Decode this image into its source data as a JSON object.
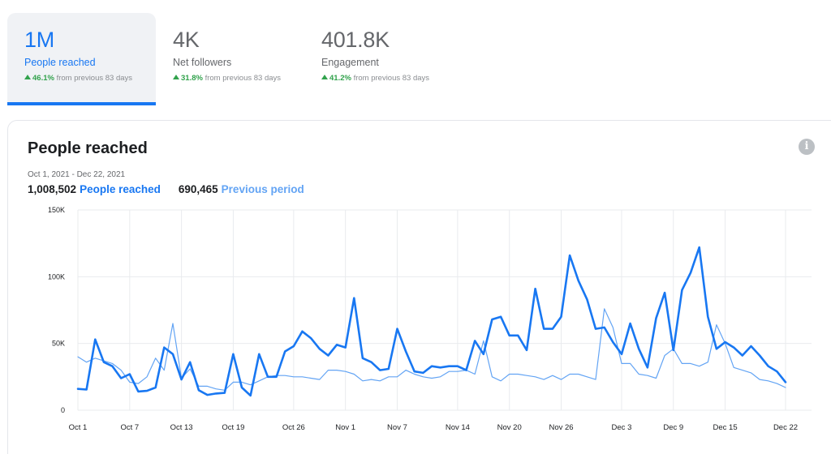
{
  "tabs": [
    {
      "value": "1M",
      "label": "People reached",
      "change_pct": "46.1%",
      "change_text": "from previous 83 days",
      "active": true
    },
    {
      "value": "4K",
      "label": "Net followers",
      "change_pct": "31.8%",
      "change_text": "from previous 83 days",
      "active": false
    },
    {
      "value": "401.8K",
      "label": "Engagement",
      "change_pct": "41.2%",
      "change_text": "from previous 83 days",
      "active": false
    }
  ],
  "card": {
    "title": "People reached",
    "date_range": "Oct 1, 2021 - Dec 22, 2021",
    "current_total": "1,008,502",
    "current_label": "People reached",
    "previous_total": "690,465",
    "previous_label": "Previous period",
    "info_icon": "info-icon"
  },
  "colors": {
    "accent": "#1877f2",
    "previous": "#63a4f4",
    "grid": "#e9ebee",
    "positive": "#31a24c"
  },
  "chart_data": {
    "type": "line",
    "title": "People reached",
    "ylim": [
      0,
      150000
    ],
    "y_ticks": [
      0,
      50000,
      100000,
      150000
    ],
    "y_tick_labels": [
      "0",
      "50K",
      "100K",
      "150K"
    ],
    "x_tick_labels": [
      "Oct 1",
      "Oct 7",
      "Oct 13",
      "Oct 19",
      "Oct 26",
      "Nov 1",
      "Nov 7",
      "Nov 14",
      "Nov 20",
      "Nov 26",
      "Dec 3",
      "Dec 9",
      "Dec 15",
      "Dec 22"
    ],
    "x_tick_days": [
      0,
      6,
      12,
      18,
      25,
      31,
      37,
      44,
      50,
      56,
      63,
      69,
      75,
      82
    ],
    "grid": true,
    "series": [
      {
        "name": "People reached",
        "color": "#1877f2",
        "values": [
          16000,
          15500,
          53000,
          36000,
          33000,
          24000,
          27000,
          14000,
          14500,
          17000,
          47000,
          42000,
          23000,
          36000,
          15000,
          11500,
          12500,
          13000,
          42000,
          17000,
          11000,
          42000,
          25000,
          25000,
          44000,
          48000,
          59000,
          54000,
          46000,
          41000,
          49000,
          47000,
          84000,
          39000,
          36000,
          30000,
          31000,
          61000,
          44000,
          29000,
          28000,
          33000,
          32000,
          33000,
          33000,
          30000,
          52000,
          42000,
          68000,
          70000,
          56000,
          56000,
          45000,
          91000,
          61000,
          61000,
          70000,
          116000,
          97000,
          83000,
          61000,
          62000,
          51000,
          42000,
          65000,
          46000,
          32000,
          69000,
          88000,
          45000,
          90000,
          103000,
          122000,
          70000,
          46000,
          51000,
          47000,
          41000,
          48000,
          41000,
          33000,
          29000,
          21000
        ],
        "style": "thick"
      },
      {
        "name": "Previous period",
        "color": "#63a4f4",
        "values": [
          40000,
          36000,
          39000,
          37000,
          35000,
          30000,
          21000,
          20000,
          25000,
          39000,
          30000,
          65000,
          24000,
          31000,
          18000,
          18000,
          16000,
          15000,
          21000,
          21000,
          19000,
          22000,
          25000,
          26000,
          26000,
          25000,
          25000,
          24000,
          23000,
          30000,
          30000,
          29000,
          27000,
          22000,
          23000,
          22000,
          25000,
          25000,
          30000,
          27000,
          25000,
          24000,
          25000,
          29000,
          29000,
          30000,
          27000,
          52000,
          25000,
          22000,
          27000,
          27000,
          26000,
          25000,
          23000,
          26000,
          23000,
          27000,
          27000,
          25000,
          23000,
          76000,
          62000,
          35000,
          35000,
          27000,
          26000,
          24000,
          41000,
          46000,
          35000,
          35000,
          33000,
          36000,
          64000,
          50000,
          32000,
          30000,
          28000,
          23000,
          22000,
          20000,
          17000
        ],
        "style": "thin"
      }
    ]
  }
}
